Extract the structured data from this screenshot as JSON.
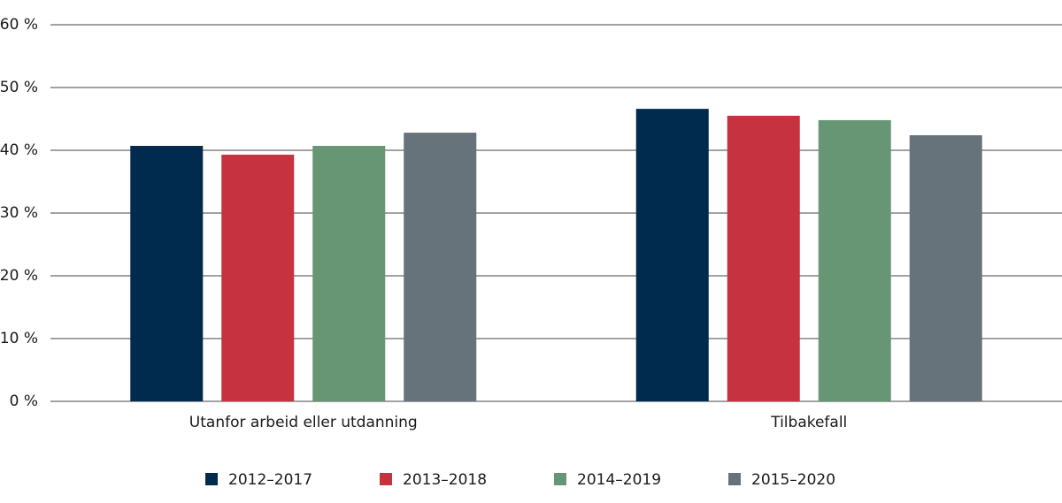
{
  "chart_data": {
    "type": "bar",
    "categories": [
      "Utanfor arbeid eller utdanning",
      "Tilbakefall"
    ],
    "series": [
      {
        "name": "2012–2017",
        "color": "#002b4e",
        "values": [
          40.7,
          46.6
        ]
      },
      {
        "name": "2013–2018",
        "color": "#c6323f",
        "values": [
          39.3,
          45.5
        ]
      },
      {
        "name": "2014–2019",
        "color": "#669673",
        "values": [
          40.7,
          44.8
        ]
      },
      {
        "name": "2015–2020",
        "color": "#67737b",
        "values": [
          42.8,
          42.4
        ]
      }
    ],
    "ylim": [
      0,
      60
    ],
    "yticks": [
      {
        "value": 0,
        "label": "0 %"
      },
      {
        "value": 10,
        "label": "10 %"
      },
      {
        "value": 20,
        "label": "20 %"
      },
      {
        "value": 30,
        "label": "30 %"
      },
      {
        "value": 40,
        "label": "40 %"
      },
      {
        "value": 50,
        "label": "50 %"
      },
      {
        "value": 60,
        "label": "60 %"
      }
    ],
    "grid": true,
    "legend": "bottom"
  }
}
